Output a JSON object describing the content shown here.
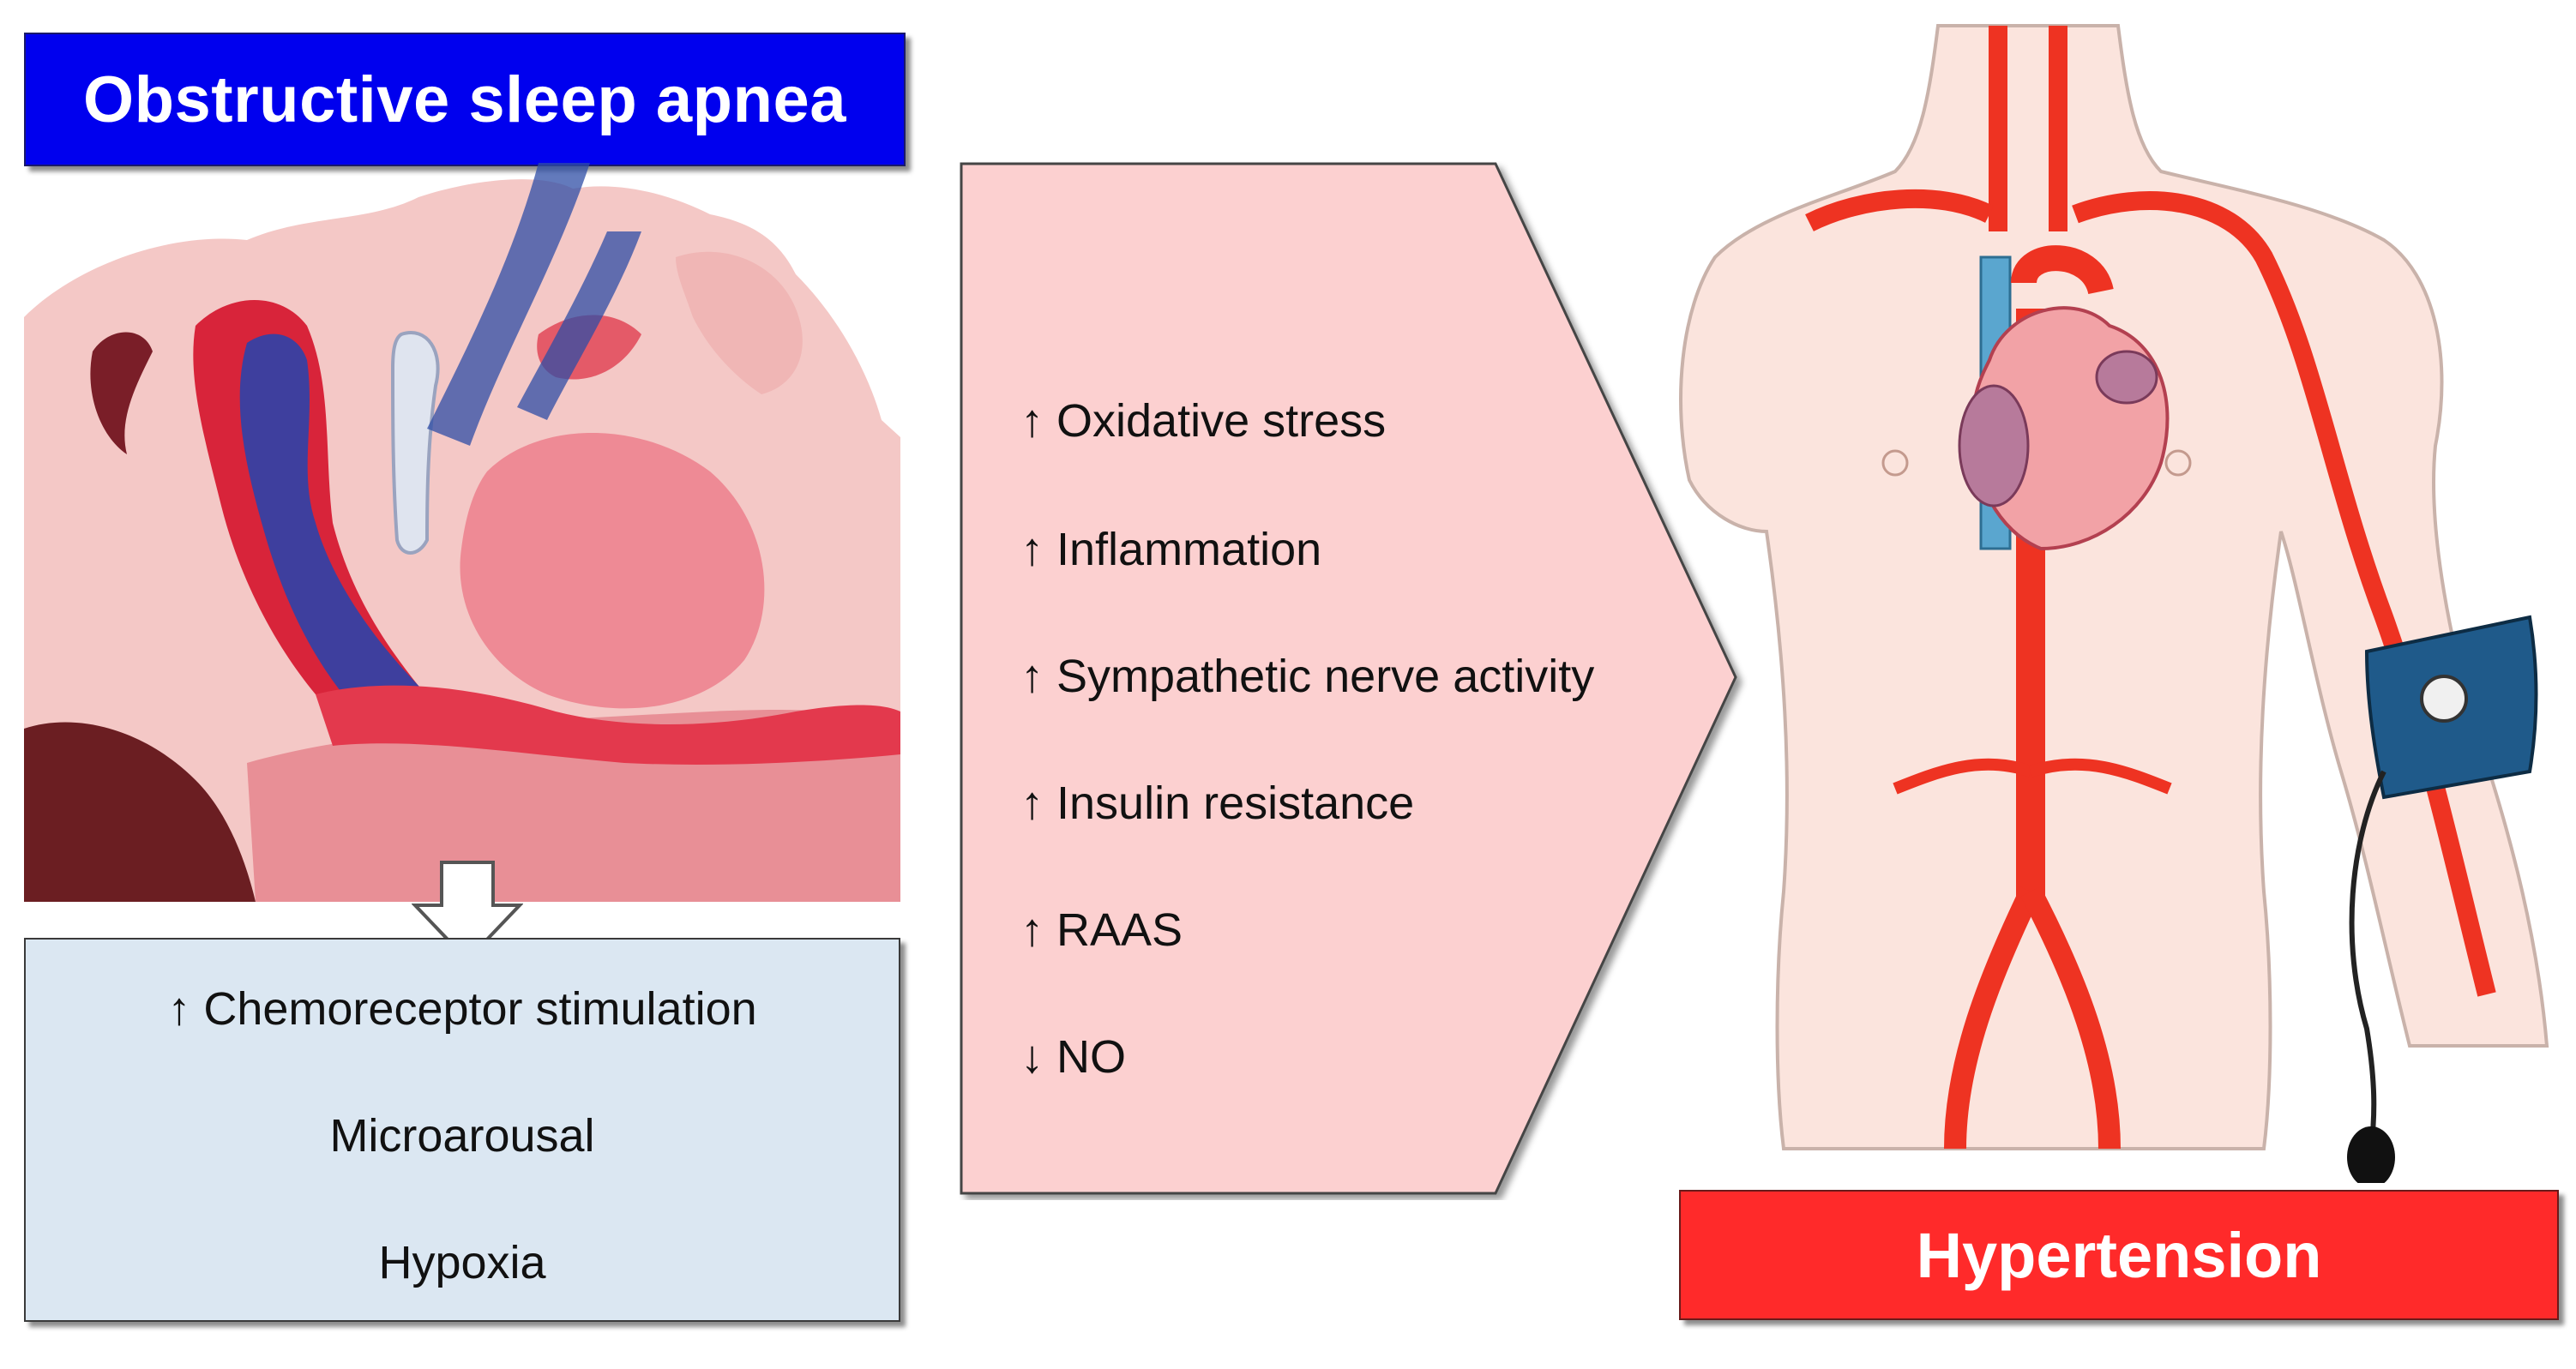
{
  "title": "Obstructive sleep apnea",
  "osa_effects": [
    "↑ Chemoreceptor stimulation",
    "Microarousal",
    "Hypoxia"
  ],
  "mechanisms": [
    "↑ Oxidative stress",
    "↑ Inflammation",
    "↑ Sympathetic nerve activity",
    "↑ Insulin resistance",
    "↑ RAAS",
    "↓ NO"
  ],
  "outcome": "Hypertension",
  "colors": {
    "title_bg": "#0000ee",
    "effects_bg": "#dbe7f2",
    "mechanism_bg": "#fcd0d0",
    "outcome_bg": "#ff2a2a",
    "artery": "#ee3322",
    "vein": "#5aa6cf"
  }
}
